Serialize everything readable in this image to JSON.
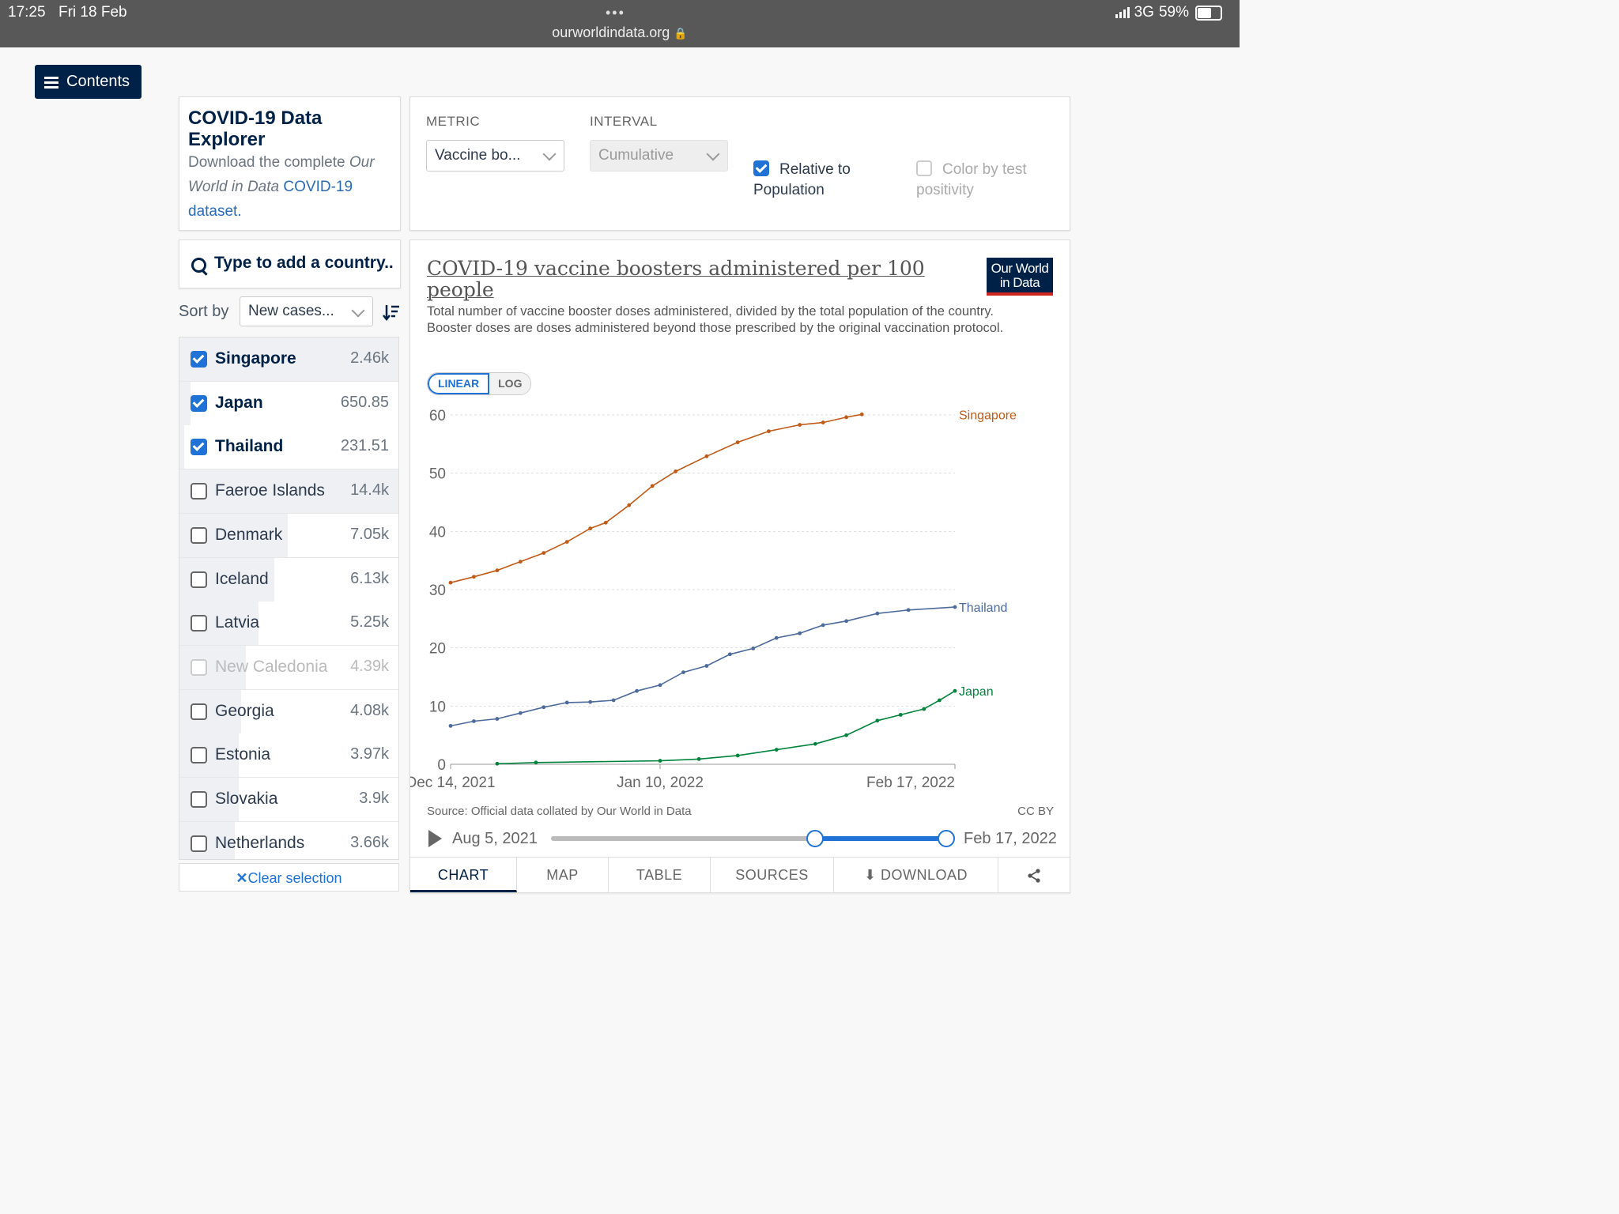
{
  "status_bar": {
    "time": "17:25",
    "date": "Fri 18 Feb",
    "url": "ourworldindata.org",
    "network": "3G",
    "battery": "59%"
  },
  "contents_button": {
    "label": "Contents"
  },
  "explorer": {
    "title": "COVID-19 Data Explorer",
    "desc_prefix": "Download the complete ",
    "desc_italic": "Our World in Data",
    "desc_link": "COVID-19 dataset."
  },
  "controls": {
    "metric_label": "METRIC",
    "metric_value": "Vaccine bo...",
    "interval_label": "INTERVAL",
    "interval_value": "Cumulative",
    "relative_label": "Relative to Population",
    "color_label": "Color by test positivity"
  },
  "search": {
    "placeholder": "Type to add a country.."
  },
  "sort": {
    "label": "Sort by",
    "value": "New cases..."
  },
  "countries": [
    {
      "name": "Singapore",
      "value": "2.46k",
      "checked": true,
      "bar": 1.0
    },
    {
      "name": "Japan",
      "value": "650.85",
      "checked": true,
      "bar": 0.05
    },
    {
      "name": "Thailand",
      "value": "231.51",
      "checked": true,
      "bar": 0.02
    },
    {
      "name": "Faeroe Islands",
      "value": "14.4k",
      "checked": false,
      "bar": 1.0
    },
    {
      "name": "Denmark",
      "value": "7.05k",
      "checked": false,
      "bar": 0.49
    },
    {
      "name": "Iceland",
      "value": "6.13k",
      "checked": false,
      "bar": 0.43
    },
    {
      "name": "Latvia",
      "value": "5.25k",
      "checked": false,
      "bar": 0.36
    },
    {
      "name": "New Caledonia",
      "value": "4.39k",
      "checked": false,
      "bar": 0.3,
      "dim": true
    },
    {
      "name": "Georgia",
      "value": "4.08k",
      "checked": false,
      "bar": 0.28
    },
    {
      "name": "Estonia",
      "value": "3.97k",
      "checked": false,
      "bar": 0.27
    },
    {
      "name": "Slovakia",
      "value": "3.9k",
      "checked": false,
      "bar": 0.27
    },
    {
      "name": "Netherlands",
      "value": "3.66k",
      "checked": false,
      "bar": 0.25
    }
  ],
  "clear_selection": "Clear selection",
  "chart": {
    "title": "COVID-19 vaccine boosters administered per 100 people",
    "subtitle": "Total number of vaccine booster doses administered, divided by the total population of the country. Booster doses are doses administered beyond those prescribed by the original vaccination protocol.",
    "logo": "Our World in Data",
    "scale_linear": "LINEAR",
    "scale_log": "LOG",
    "source": "Source: Official data collated by Our World in Data",
    "license": "CC BY",
    "timeline_start": "Aug 5, 2021",
    "timeline_end": "Feb 17, 2022",
    "tabs": [
      "CHART",
      "MAP",
      "TABLE",
      "SOURCES",
      "DOWNLOAD"
    ]
  },
  "chart_data": {
    "type": "line",
    "x_range": [
      "2021-12-14",
      "2022-02-17"
    ],
    "x_ticks": [
      "Dec 14, 2021",
      "Jan 10, 2022",
      "Feb 17, 2022"
    ],
    "ylim": [
      0,
      60
    ],
    "y_ticks": [
      0,
      10,
      20,
      30,
      40,
      50,
      60
    ],
    "grid": true,
    "series": [
      {
        "name": "Singapore",
        "color": "#c15a17",
        "points": [
          [
            "2021-12-14",
            31.2
          ],
          [
            "2021-12-17",
            32.2
          ],
          [
            "2021-12-20",
            33.3
          ],
          [
            "2021-12-23",
            34.8
          ],
          [
            "2021-12-26",
            36.3
          ],
          [
            "2021-12-29",
            38.2
          ],
          [
            "2022-01-01",
            40.5
          ],
          [
            "2022-01-03",
            41.5
          ],
          [
            "2022-01-06",
            44.5
          ],
          [
            "2022-01-09",
            47.8
          ],
          [
            "2022-01-12",
            50.3
          ],
          [
            "2022-01-16",
            52.9
          ],
          [
            "2022-01-20",
            55.3
          ],
          [
            "2022-01-24",
            57.2
          ],
          [
            "2022-01-28",
            58.3
          ],
          [
            "2022-01-31",
            58.7
          ],
          [
            "2022-02-03",
            59.6
          ],
          [
            "2022-02-05",
            60.1
          ]
        ]
      },
      {
        "name": "Thailand",
        "color": "#4c6a9c",
        "points": [
          [
            "2021-12-14",
            6.6
          ],
          [
            "2021-12-17",
            7.4
          ],
          [
            "2021-12-20",
            7.8
          ],
          [
            "2021-12-23",
            8.8
          ],
          [
            "2021-12-26",
            9.8
          ],
          [
            "2021-12-29",
            10.6
          ],
          [
            "2022-01-01",
            10.7
          ],
          [
            "2022-01-04",
            11.0
          ],
          [
            "2022-01-07",
            12.6
          ],
          [
            "2022-01-10",
            13.6
          ],
          [
            "2022-01-13",
            15.8
          ],
          [
            "2022-01-16",
            16.9
          ],
          [
            "2022-01-19",
            18.9
          ],
          [
            "2022-01-22",
            19.9
          ],
          [
            "2022-01-25",
            21.7
          ],
          [
            "2022-01-28",
            22.5
          ],
          [
            "2022-01-31",
            23.9
          ],
          [
            "2022-02-03",
            24.6
          ],
          [
            "2022-02-07",
            25.9
          ],
          [
            "2022-02-11",
            26.5
          ],
          [
            "2022-02-17",
            27.0
          ]
        ]
      },
      {
        "name": "Japan",
        "color": "#00843d",
        "points": [
          [
            "2021-12-20",
            0.1
          ],
          [
            "2021-12-25",
            0.3
          ],
          [
            "2022-01-10",
            0.6
          ],
          [
            "2022-01-15",
            0.9
          ],
          [
            "2022-01-20",
            1.5
          ],
          [
            "2022-01-25",
            2.5
          ],
          [
            "2022-01-30",
            3.5
          ],
          [
            "2022-02-03",
            5.0
          ],
          [
            "2022-02-07",
            7.5
          ],
          [
            "2022-02-10",
            8.5
          ],
          [
            "2022-02-13",
            9.5
          ],
          [
            "2022-02-15",
            11.0
          ],
          [
            "2022-02-17",
            12.6
          ]
        ]
      }
    ]
  }
}
